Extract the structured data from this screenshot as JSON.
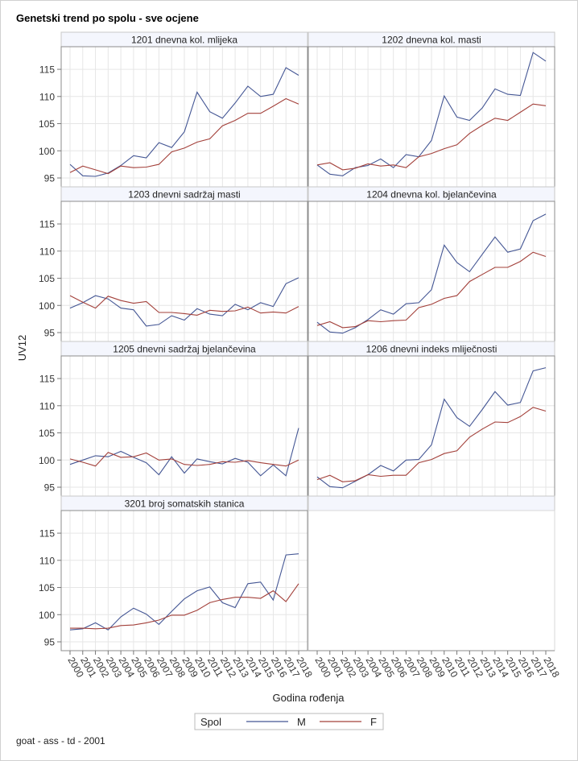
{
  "chart_data": {
    "type": "line",
    "title": "Genetski trend po spolu - sve ocjene",
    "xlabel": "Godina rođenja",
    "ylabel": "UV12",
    "footnote": "goat - ass - td - 2001",
    "ylim": [
      93.37,
      119.16
    ],
    "yticks": [
      95,
      100,
      105,
      110,
      115
    ],
    "ytick_labels": [
      "95",
      "100",
      "105",
      "110",
      "115"
    ],
    "x": [
      "2000",
      "2001",
      "2002",
      "2003",
      "2004",
      "2005",
      "2006",
      "2007",
      "2008",
      "2009",
      "2010",
      "2011",
      "2012",
      "2013",
      "2014",
      "2015",
      "2016",
      "2017",
      "2018"
    ],
    "grid": true,
    "legend": {
      "title": "Spol",
      "placement": "bottom-center",
      "entries": [
        {
          "name": "M",
          "color": "#445694"
        },
        {
          "name": "F",
          "color": "#a3403a"
        }
      ]
    },
    "panels": [
      {
        "title": "1201 dnevna kol. mlijeka",
        "series": [
          {
            "name": "M",
            "values": [
              97.5,
              95.4,
              95.3,
              95.9,
              97.3,
              99.1,
              98.7,
              101.5,
              100.6,
              103.5,
              110.8,
              107.2,
              106.0,
              108.8,
              111.9,
              110.0,
              110.4,
              115.3,
              113.9
            ]
          },
          {
            "name": "F",
            "values": [
              96.0,
              97.2,
              96.5,
              95.8,
              97.2,
              96.9,
              97.0,
              97.5,
              99.8,
              100.5,
              101.6,
              102.2,
              104.6,
              105.6,
              106.9,
              106.9,
              108.2,
              109.6,
              108.6
            ]
          }
        ]
      },
      {
        "title": "1202 dnevna kol. masti",
        "series": [
          {
            "name": "M",
            "values": [
              97.4,
              95.7,
              95.4,
              96.9,
              97.3,
              98.5,
              96.9,
              99.3,
              98.9,
              101.9,
              110.1,
              106.2,
              105.6,
              107.9,
              111.4,
              110.4,
              110.2,
              118.1,
              116.5
            ]
          },
          {
            "name": "F",
            "values": [
              97.4,
              97.8,
              96.5,
              96.8,
              97.6,
              97.2,
              97.4,
              96.9,
              98.9,
              99.5,
              100.4,
              101.1,
              103.2,
              104.7,
              106.0,
              105.6,
              107.1,
              108.6,
              108.3
            ]
          }
        ]
      },
      {
        "title": "1203 dnevni sadržaj masti",
        "series": [
          {
            "name": "M",
            "values": [
              99.5,
              100.5,
              101.8,
              101.2,
              99.5,
              99.2,
              96.2,
              96.5,
              98.1,
              97.3,
              99.4,
              98.4,
              98.1,
              100.2,
              99.2,
              100.5,
              99.8,
              104.0,
              105.1
            ]
          },
          {
            "name": "F",
            "values": [
              101.8,
              100.6,
              99.5,
              101.7,
              100.9,
              100.4,
              100.7,
              98.7,
              98.7,
              98.5,
              98.2,
              99.1,
              98.9,
              99.0,
              99.7,
              98.6,
              98.8,
              98.6,
              99.8
            ]
          }
        ]
      },
      {
        "title": "1204 dnevna kol. bjelančevina",
        "series": [
          {
            "name": "M",
            "values": [
              96.9,
              95.1,
              94.9,
              95.9,
              97.4,
              99.2,
              98.4,
              100.3,
              100.5,
              102.9,
              111.1,
              107.9,
              106.2,
              109.4,
              112.6,
              109.8,
              110.4,
              115.6,
              116.8
            ]
          },
          {
            "name": "F",
            "values": [
              96.3,
              97.0,
              95.9,
              96.1,
              97.2,
              97.0,
              97.2,
              97.3,
              99.6,
              100.2,
              101.3,
              101.8,
              104.4,
              105.7,
              107.0,
              107.0,
              108.1,
              109.8,
              109.0
            ]
          }
        ]
      },
      {
        "title": "1205 dnevni sadržaj bjelančevina",
        "series": [
          {
            "name": "M",
            "values": [
              99.2,
              100.0,
              100.8,
              100.6,
              101.6,
              100.5,
              99.5,
              97.3,
              100.6,
              97.6,
              100.2,
              99.7,
              99.3,
              100.3,
              99.6,
              97.1,
              99.1,
              97.1,
              105.9
            ]
          },
          {
            "name": "F",
            "values": [
              100.2,
              99.6,
              98.9,
              101.4,
              100.5,
              100.6,
              101.3,
              100.0,
              100.2,
              99.2,
              99.0,
              99.2,
              99.7,
              99.6,
              99.9,
              99.5,
              99.2,
              98.9,
              100.0
            ]
          }
        ]
      },
      {
        "title": "1206 dnevni indeks mliječnosti",
        "series": [
          {
            "name": "M",
            "values": [
              96.9,
              95.1,
              94.9,
              96.1,
              97.3,
              99.0,
              98.0,
              100.0,
              100.1,
              102.8,
              111.2,
              107.8,
              106.2,
              109.3,
              112.6,
              110.1,
              110.6,
              116.4,
              117.0
            ]
          },
          {
            "name": "F",
            "values": [
              96.4,
              97.2,
              96.0,
              96.2,
              97.3,
              97.0,
              97.2,
              97.2,
              99.5,
              100.1,
              101.2,
              101.7,
              104.2,
              105.7,
              107.0,
              106.9,
              108.0,
              109.7,
              109.0
            ]
          }
        ]
      },
      {
        "title": "3201 broj somatskih stanica",
        "series": [
          {
            "name": "M",
            "values": [
              97.2,
              97.4,
              98.5,
              97.2,
              99.6,
              101.2,
              100.1,
              98.2,
              100.6,
              102.9,
              104.4,
              105.1,
              102.2,
              101.3,
              105.7,
              106.0,
              102.7,
              111.0,
              111.2
            ]
          },
          {
            "name": "F",
            "values": [
              97.5,
              97.5,
              97.4,
              97.5,
              98.0,
              98.1,
              98.5,
              99.0,
              99.9,
              99.9,
              100.8,
              102.2,
              102.8,
              103.2,
              103.2,
              103.0,
              104.4,
              102.4,
              105.7
            ]
          }
        ]
      }
    ]
  }
}
